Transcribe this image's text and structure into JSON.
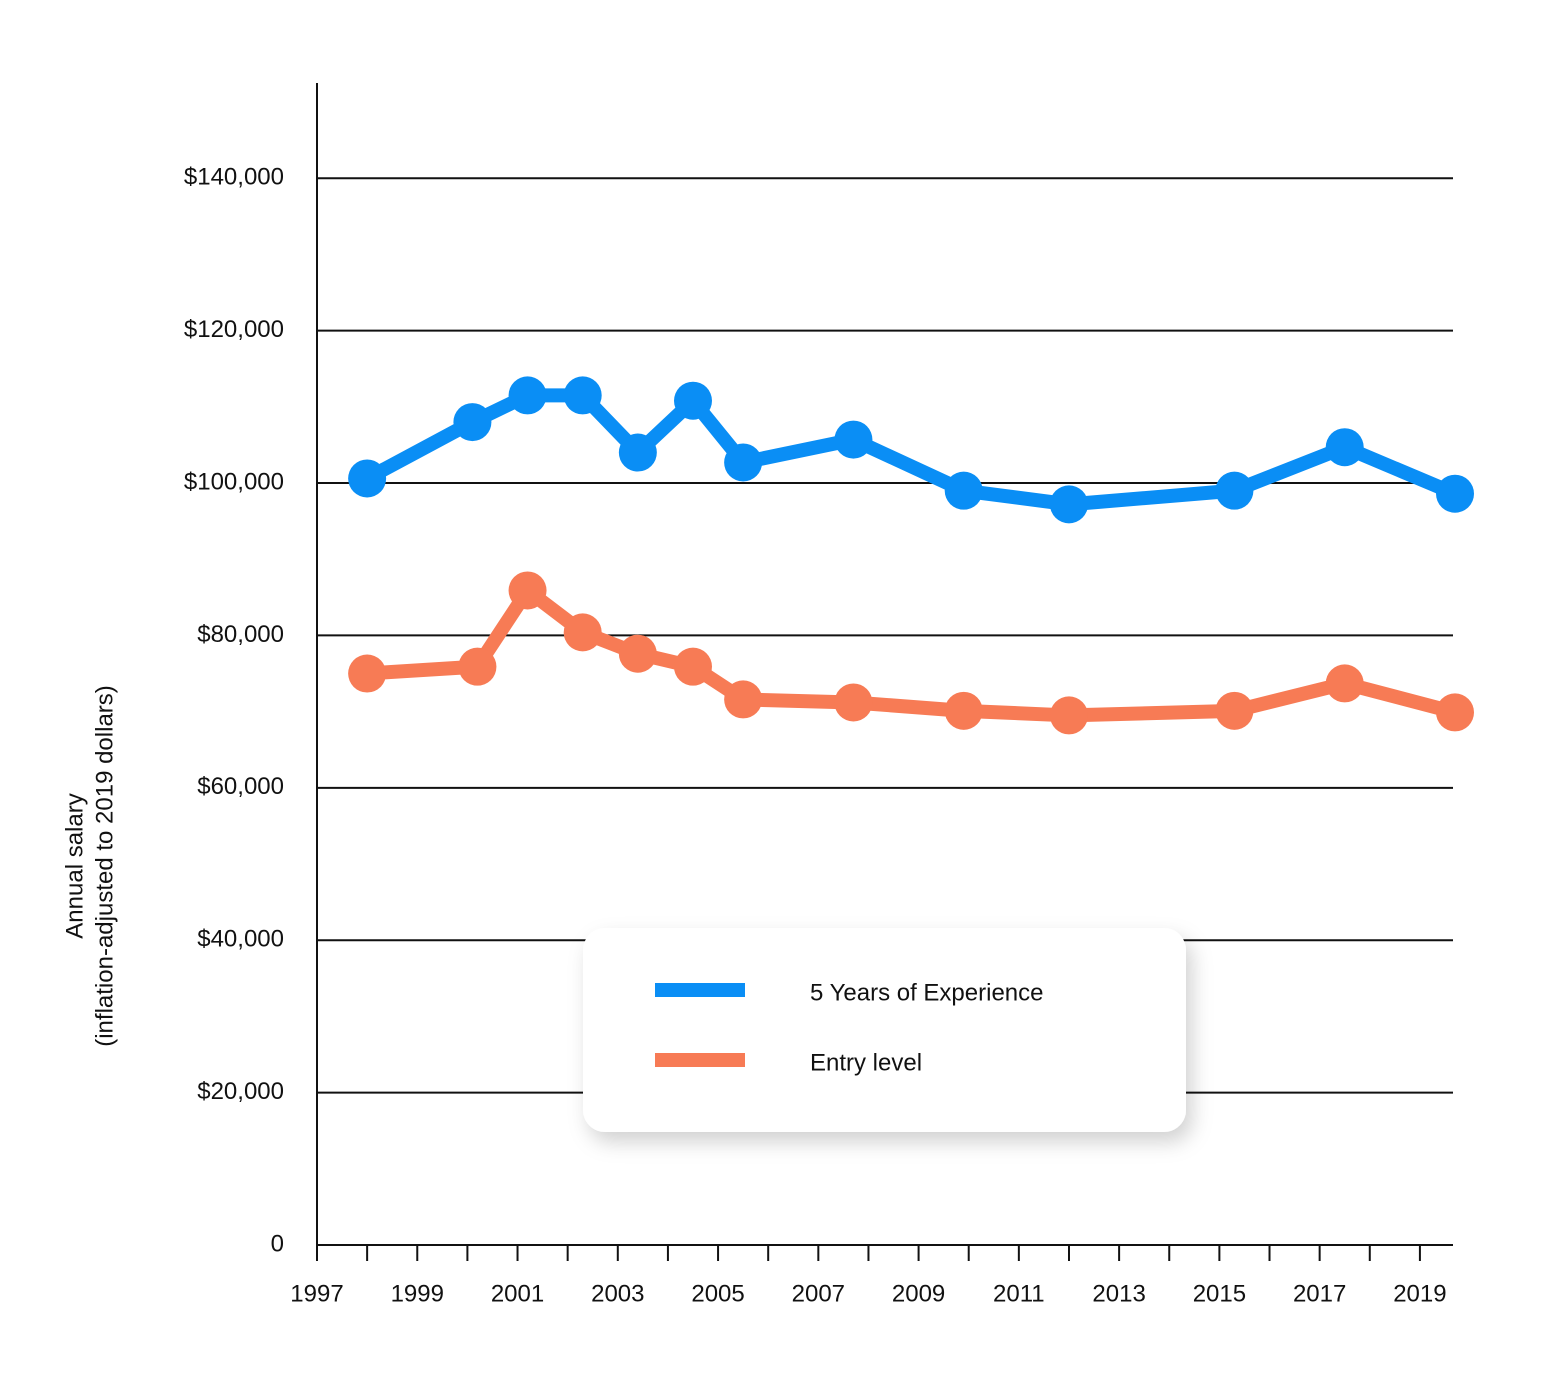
{
  "chart_data": {
    "type": "line",
    "ylabel": [
      "Annual salary",
      "(inflation-adjusted to 2019 dollars)"
    ],
    "series": [
      {
        "name": "5 Years of Experience",
        "color": "#0a8ef5",
        "x": [
          1998.0,
          2000.1,
          2001.2,
          2002.3,
          2003.4,
          2004.5,
          2005.5,
          2007.7,
          2009.9,
          2012.0,
          2015.3,
          2017.5,
          2019.7
        ],
        "values": [
          100600,
          108000,
          111500,
          111500,
          104000,
          110800,
          102700,
          105700,
          99000,
          97200,
          99000,
          104700,
          98600
        ]
      },
      {
        "name": "Entry level",
        "color": "#f77b55",
        "x": [
          1998.0,
          2000.2,
          2001.2,
          2002.3,
          2003.4,
          2004.5,
          2005.5,
          2007.7,
          2009.9,
          2012.0,
          2015.3,
          2017.5,
          2019.7
        ],
        "values": [
          75000,
          75900,
          85900,
          80400,
          77600,
          75900,
          71600,
          71200,
          70100,
          69500,
          70100,
          73700,
          69900
        ]
      }
    ],
    "xlim": [
      1997,
      2019.66
    ],
    "xticks": [
      1997,
      1999,
      2001,
      2003,
      2005,
      2007,
      2009,
      2011,
      2013,
      2015,
      2017,
      2019
    ],
    "x_minor_ticks": [
      1998,
      2000,
      2002,
      2004,
      2006,
      2008,
      2010,
      2012,
      2014,
      2016,
      2018
    ],
    "ylim": [
      0,
      152500
    ],
    "yticks": [
      0,
      {
        "value": 20000,
        "label": "$20,000"
      },
      {
        "value": 40000,
        "label": "$40,000"
      },
      {
        "value": 60000,
        "label": "$60,000"
      },
      {
        "value": 80000,
        "label": "$80,000"
      },
      {
        "value": 100000,
        "label": "$100,000"
      },
      {
        "value": 120000,
        "label": "$120,000"
      },
      {
        "value": 140000,
        "label": "$140,000"
      }
    ],
    "grid": true,
    "legend": "bottom-center"
  }
}
